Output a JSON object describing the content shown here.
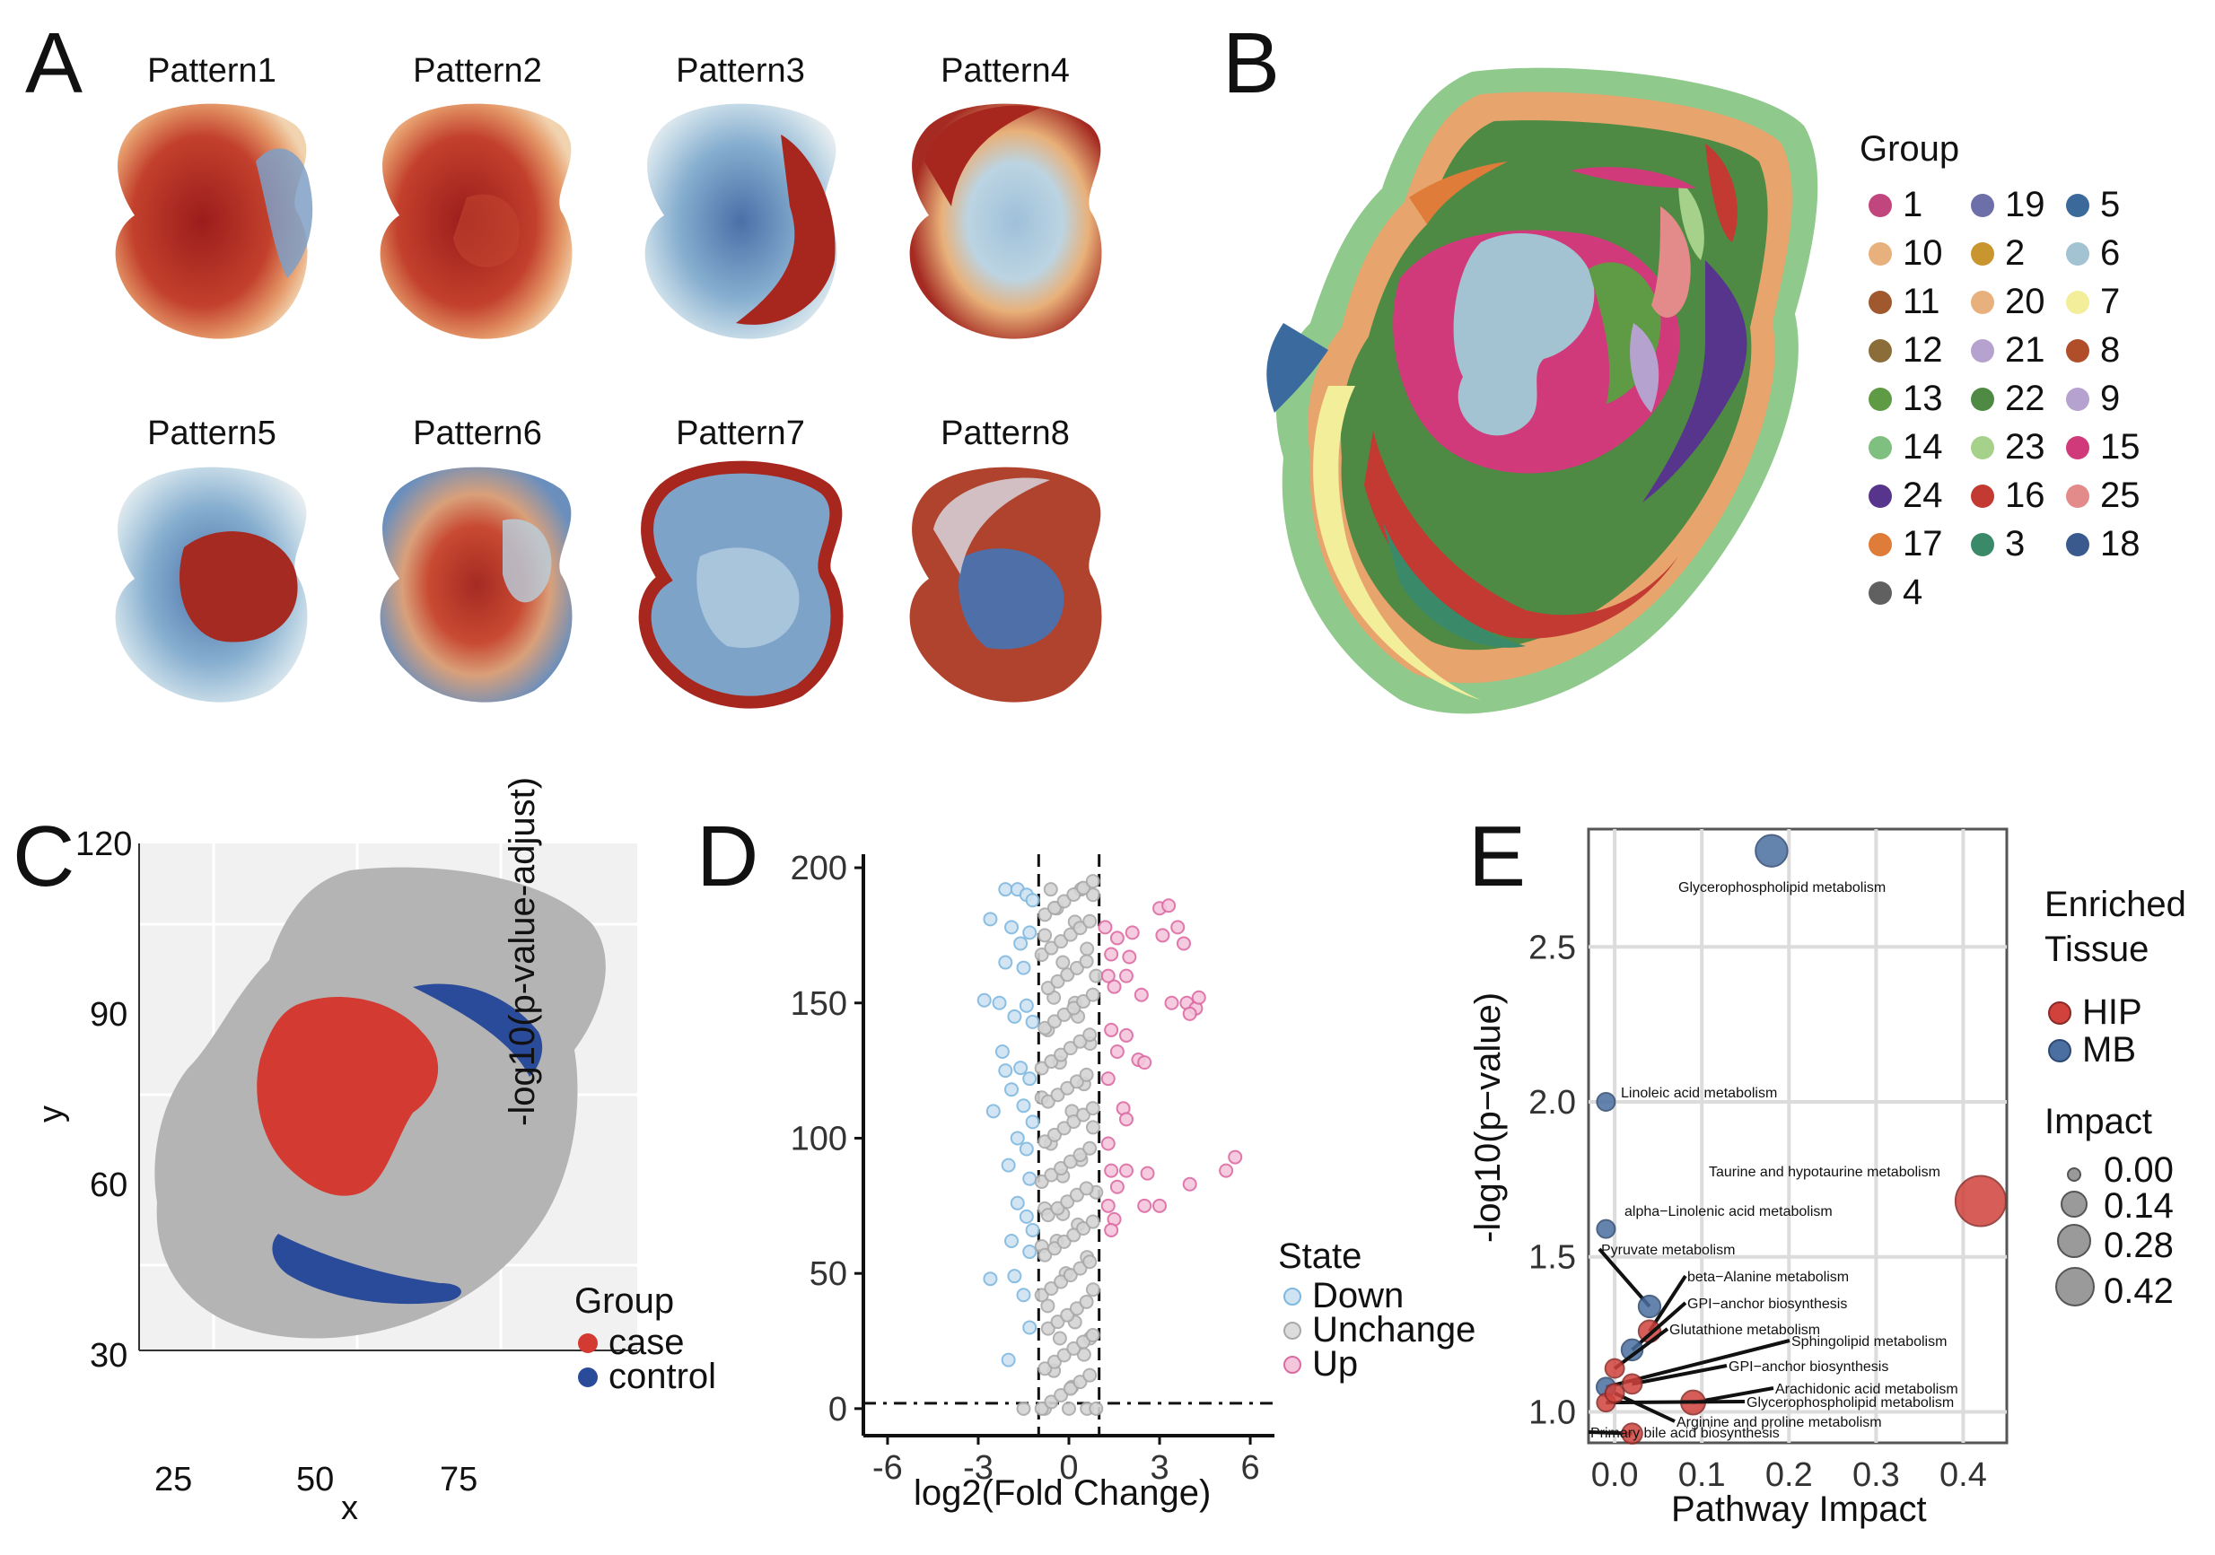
{
  "panels": {
    "a": {
      "letter": "A",
      "titles": [
        "Pattern1",
        "Pattern2",
        "Pattern3",
        "Pattern4",
        "Pattern5",
        "Pattern6",
        "Pattern7",
        "Pattern8"
      ]
    },
    "b": {
      "letter": "B",
      "legend_title": "Group",
      "groups": [
        {
          "label": "1",
          "color": "#c2467e"
        },
        {
          "label": "19",
          "color": "#6d6fa8"
        },
        {
          "label": "5",
          "color": "#3b6a9a"
        },
        {
          "label": "10",
          "color": "#e8b07c"
        },
        {
          "label": "2",
          "color": "#c8952e"
        },
        {
          "label": "6",
          "color": "#a3c3d2"
        },
        {
          "label": "11",
          "color": "#a0592e"
        },
        {
          "label": "20",
          "color": "#e8b07c"
        },
        {
          "label": "7",
          "color": "#f2ee9a"
        },
        {
          "label": "12",
          "color": "#8b6d3a"
        },
        {
          "label": "21",
          "color": "#b5a2cf"
        },
        {
          "label": "8",
          "color": "#b04e2a"
        },
        {
          "label": "13",
          "color": "#5f9a45"
        },
        {
          "label": "22",
          "color": "#4e8a44"
        },
        {
          "label": "9",
          "color": "#b5a2cf"
        },
        {
          "label": "14",
          "color": "#7fbf7f"
        },
        {
          "label": "23",
          "color": "#a6d18a"
        },
        {
          "label": "15",
          "color": "#d13a7a"
        },
        {
          "label": "24",
          "color": "#57358c"
        },
        {
          "label": "16",
          "color": "#c23a32"
        },
        {
          "label": "25",
          "color": "#e38a8a"
        },
        {
          "label": "17",
          "color": "#e07c3a"
        },
        {
          "label": "3",
          "color": "#3a8a6a"
        },
        {
          "label": "18",
          "color": "#3a5a8e"
        },
        {
          "label": "4",
          "color": "#606060"
        }
      ]
    },
    "c": {
      "letter": "C",
      "legend_title": "Group",
      "xlabel": "x",
      "ylabel": "y",
      "xticks": [
        "25",
        "50",
        "75"
      ],
      "yticks": [
        "30",
        "60",
        "90",
        "120"
      ],
      "legend": [
        {
          "label": "case",
          "color": "#d23a32"
        },
        {
          "label": "control",
          "color": "#2a4a9a"
        }
      ]
    },
    "d": {
      "letter": "D",
      "legend_title": "State",
      "xlabel": "log2(Fold Change)",
      "ylabel": "-log10(p-value-adjust)",
      "xticks": [
        "-6",
        "-3",
        "0",
        "3",
        "6"
      ],
      "yticks": [
        "0",
        "50",
        "100",
        "150",
        "200"
      ],
      "legend": [
        {
          "label": "Down",
          "color": "#7fb8e0"
        },
        {
          "label": "Unchange",
          "color": "#a9a9a9"
        },
        {
          "label": "Up",
          "color": "#dd6aa3"
        }
      ]
    },
    "e": {
      "letter": "E",
      "xlabel": "Pathway Impact",
      "ylabel": "-log10(p−value)",
      "legend_title_1": "Enriched",
      "legend_title_2": "Tissue",
      "size_title": "Impact",
      "tissue": [
        {
          "label": "HIP",
          "color": "#d1423c"
        },
        {
          "label": "MB",
          "color": "#4a6fa0"
        }
      ],
      "sizes": [
        "0.00",
        "0.14",
        "0.28",
        "0.42"
      ]
    }
  },
  "chart_data": [
    {
      "type": "scatter",
      "title": "",
      "xlabel": "log2(Fold Change)",
      "ylabel": "-log10(p-value-adjust)",
      "xlim": [
        -6.8,
        6.8
      ],
      "ylim": [
        -10,
        205
      ],
      "thresholds": {
        "fc_lines": [
          -1,
          1
        ],
        "p_line": 2
      },
      "series": [
        {
          "name": "Down",
          "points": [
            [
              -2.1,
              192
            ],
            [
              -1.7,
              192
            ],
            [
              -1.4,
              190
            ],
            [
              -1.2,
              188
            ],
            [
              -2.6,
              181
            ],
            [
              -1.9,
              178
            ],
            [
              -1.3,
              176
            ],
            [
              -1.6,
              172
            ],
            [
              -2.1,
              165
            ],
            [
              -1.5,
              163
            ],
            [
              -2.8,
              151
            ],
            [
              -2.3,
              150
            ],
            [
              -1.4,
              149
            ],
            [
              -1.8,
              145
            ],
            [
              -1.2,
              143
            ],
            [
              -2.2,
              132
            ],
            [
              -1.6,
              126
            ],
            [
              -2.1,
              125
            ],
            [
              -1.3,
              122
            ],
            [
              -1.9,
              118
            ],
            [
              -1.5,
              112
            ],
            [
              -2.5,
              110
            ],
            [
              -1.2,
              106
            ],
            [
              -1.7,
              100
            ],
            [
              -1.4,
              96
            ],
            [
              -2.0,
              90
            ],
            [
              -1.3,
              85
            ],
            [
              -1.7,
              76
            ],
            [
              -1.4,
              71
            ],
            [
              -1.9,
              62
            ],
            [
              -1.3,
              58
            ],
            [
              -2.6,
              48
            ],
            [
              -1.8,
              49
            ],
            [
              -1.5,
              42
            ],
            [
              -1.3,
              30
            ],
            [
              -2.0,
              18
            ],
            [
              -1.2,
              66
            ]
          ]
        },
        {
          "name": "Unchange",
          "points": [
            [
              -0.6,
              192
            ],
            [
              0.4,
              192
            ],
            [
              0.8,
              190
            ],
            [
              -0.4,
              185
            ],
            [
              0.2,
              180
            ],
            [
              -0.8,
              175
            ],
            [
              0.6,
              170
            ],
            [
              -0.2,
              165
            ],
            [
              0.9,
              160
            ],
            [
              -0.5,
              152
            ],
            [
              0.3,
              145
            ],
            [
              -0.7,
              140
            ],
            [
              0.7,
              135
            ],
            [
              -0.3,
              128
            ],
            [
              0.5,
              120
            ],
            [
              -0.9,
              115
            ],
            [
              0.1,
              110
            ],
            [
              0.8,
              104
            ],
            [
              -0.6,
              98
            ],
            [
              0.4,
              92
            ],
            [
              -0.2,
              86
            ],
            [
              0.9,
              80
            ],
            [
              -0.8,
              74
            ],
            [
              0.3,
              68
            ],
            [
              -0.4,
              62
            ],
            [
              0.6,
              56
            ],
            [
              -0.1,
              50
            ],
            [
              0.8,
              44
            ],
            [
              -0.7,
              38
            ],
            [
              0.2,
              32
            ],
            [
              -0.3,
              26
            ],
            [
              0.5,
              20
            ],
            [
              -0.5,
              14
            ],
            [
              0.1,
              8
            ],
            [
              -1.5,
              0
            ],
            [
              -0.8,
              0
            ],
            [
              0,
              0
            ],
            [
              0.6,
              0
            ],
            [
              0.9,
              0
            ],
            [
              -0.2,
              72
            ],
            [
              0.2,
              150
            ],
            [
              -0.9,
              60
            ],
            [
              0.7,
              26
            ]
          ]
        },
        {
          "name": "Up",
          "points": [
            [
              3.0,
              185
            ],
            [
              3.3,
              186
            ],
            [
              3.6,
              178
            ],
            [
              1.2,
              178
            ],
            [
              1.6,
              174
            ],
            [
              2.1,
              176
            ],
            [
              3.1,
              175
            ],
            [
              3.8,
              172
            ],
            [
              1.4,
              168
            ],
            [
              2.0,
              167
            ],
            [
              1.3,
              160
            ],
            [
              1.9,
              160
            ],
            [
              1.5,
              156
            ],
            [
              2.4,
              153
            ],
            [
              3.4,
              150
            ],
            [
              3.9,
              150
            ],
            [
              4.2,
              148
            ],
            [
              4.3,
              152
            ],
            [
              4.0,
              146
            ],
            [
              1.4,
              140
            ],
            [
              1.9,
              138
            ],
            [
              1.6,
              132
            ],
            [
              2.3,
              129
            ],
            [
              2.5,
              128
            ],
            [
              1.3,
              122
            ],
            [
              1.8,
              111
            ],
            [
              1.9,
              107
            ],
            [
              1.3,
              98
            ],
            [
              1.4,
              88
            ],
            [
              1.9,
              88
            ],
            [
              2.6,
              87
            ],
            [
              4.0,
              83
            ],
            [
              5.2,
              88
            ],
            [
              5.5,
              93
            ],
            [
              1.6,
              82
            ],
            [
              3.0,
              75
            ],
            [
              1.3,
              75
            ],
            [
              2.5,
              75
            ],
            [
              1.5,
              70
            ],
            [
              1.4,
              66
            ]
          ]
        }
      ]
    },
    {
      "type": "scatter",
      "title": "",
      "xlabel": "Pathway Impact",
      "ylabel": "-log10(p−value)",
      "xlim": [
        -0.03,
        0.45
      ],
      "ylim": [
        0.9,
        2.88
      ],
      "points": [
        {
          "label": "Glycerophospholipid metabolism",
          "x": 0.18,
          "y": 2.81,
          "tissue": "MB",
          "impact": 0.18
        },
        {
          "label": "Linoleic acid metabolism",
          "x": -0.01,
          "y": 2.0,
          "tissue": "MB",
          "impact": 0.0
        },
        {
          "label": "Taurine and hypotaurine metabolism",
          "x": 0.42,
          "y": 1.68,
          "tissue": "HIP",
          "impact": 0.42
        },
        {
          "label": "alpha−Linolenic acid metabolism",
          "x": -0.01,
          "y": 1.59,
          "tissue": "MB",
          "impact": 0.0
        },
        {
          "label": "Pyruvate metabolism",
          "x": 0.04,
          "y": 1.34,
          "tissue": "MB",
          "impact": 0.05
        },
        {
          "label": "beta−Alanine metabolism",
          "x": 0.04,
          "y": 1.26,
          "tissue": "HIP",
          "impact": 0.05
        },
        {
          "label": "GPI−anchor biosynthesis",
          "x": 0.02,
          "y": 1.2,
          "tissue": "MB",
          "impact": 0.04
        },
        {
          "label": "Glutathione metabolism",
          "x": 0.0,
          "y": 1.14,
          "tissue": "HIP",
          "impact": 0.01
        },
        {
          "label": "Sphingolipid metabolism",
          "x": -0.01,
          "y": 1.08,
          "tissue": "MB",
          "impact": 0.01
        },
        {
          "label": "GPI−anchor biosynthesis",
          "x": 0.02,
          "y": 1.09,
          "tissue": "HIP",
          "impact": 0.02
        },
        {
          "label": "Arachidonic acid metabolism",
          "x": 0.09,
          "y": 1.03,
          "tissue": "HIP",
          "impact": 0.08
        },
        {
          "label": "Glycerophospholipid metabolism",
          "x": -0.01,
          "y": 1.03,
          "tissue": "HIP",
          "impact": 0.0
        },
        {
          "label": "Arginine and proline metabolism",
          "x": 0.0,
          "y": 1.06,
          "tissue": "HIP",
          "impact": 0.01
        },
        {
          "label": "Primary bile acid biosynthesis",
          "x": 0.02,
          "y": 0.93,
          "tissue": "HIP",
          "impact": 0.03
        }
      ],
      "xticks": [
        "0.0",
        "0.1",
        "0.2",
        "0.3",
        "0.4"
      ],
      "yticks": [
        "1.0",
        "1.5",
        "2.0",
        "2.5"
      ]
    }
  ]
}
